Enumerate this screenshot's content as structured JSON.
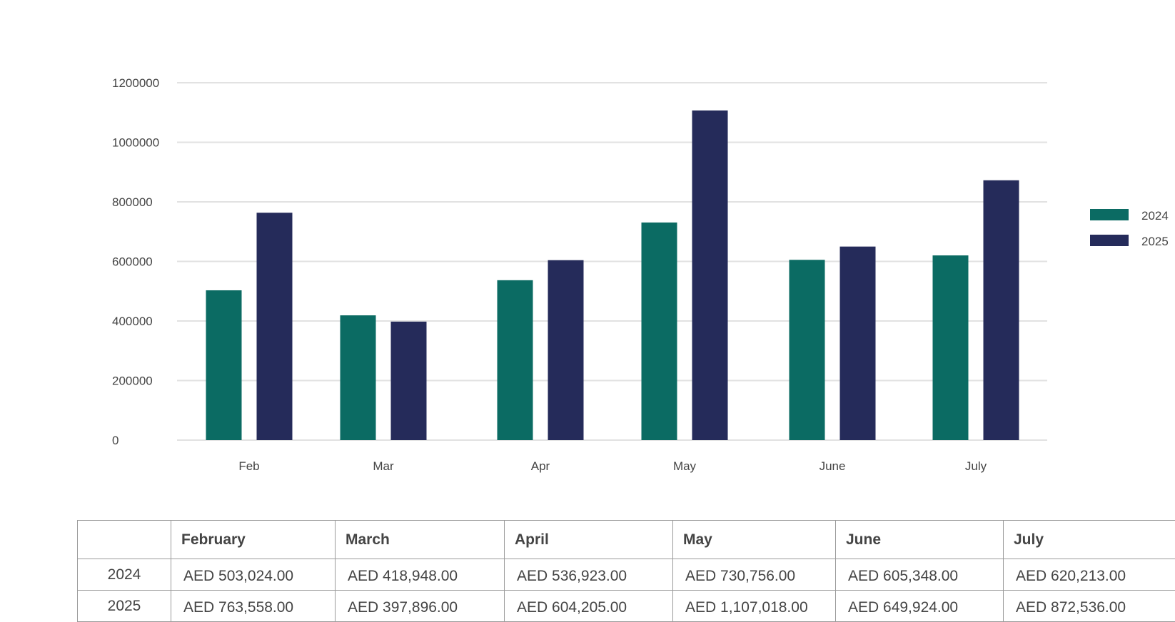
{
  "chart_data": {
    "type": "bar",
    "categories": [
      "Feb",
      "Mar",
      "Apr",
      "May",
      "June",
      "July"
    ],
    "series": [
      {
        "name": "2024",
        "values": [
          503024,
          418948,
          536923,
          730756,
          605348,
          620213
        ],
        "color": "#0b6b63"
      },
      {
        "name": "2025",
        "values": [
          763558,
          397896,
          604205,
          1107018,
          649924,
          872536
        ],
        "color": "#252b5a"
      }
    ],
    "y_ticks": [
      "0",
      "200000",
      "400000",
      "600000",
      "800000",
      "1000000",
      "1200000"
    ],
    "ylim": [
      0,
      1200000
    ],
    "grid": true,
    "legend": "right"
  },
  "table": {
    "headers": [
      "",
      "February",
      "March",
      "April",
      "May",
      "June",
      "July"
    ],
    "rows": [
      {
        "year": "2024",
        "cells": [
          "AED 503,024.00",
          "AED 418,948.00",
          "AED 536,923.00",
          "AED 730,756.00",
          "AED 605,348.00",
          "AED 620,213.00"
        ]
      },
      {
        "year": "2025",
        "cells": [
          "AED 763,558.00",
          "AED 397,896.00",
          "AED 604,205.00",
          "AED 1,107,018.00",
          "AED 649,924.00",
          "AED 872,536.00"
        ]
      }
    ]
  },
  "colors": {
    "grid": "#e2e2e2",
    "text": "#444444",
    "border": "#9a9a9a"
  }
}
